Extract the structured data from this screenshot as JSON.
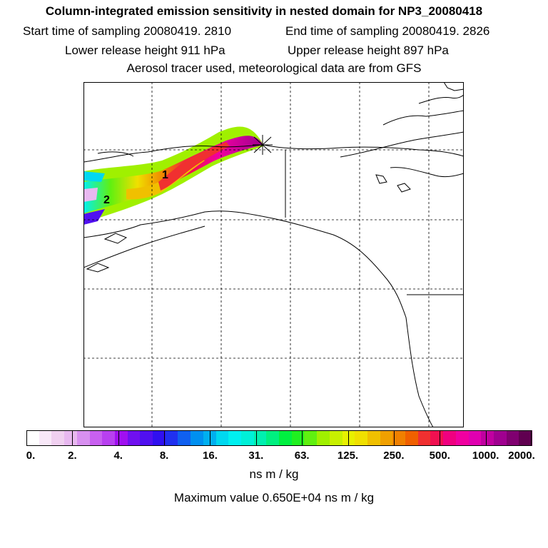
{
  "header": {
    "title": "Column-integrated emission sensitivity in nested domain for NP3_20080418",
    "start_time": "Start time of sampling 20080419.  2810",
    "end_time": "End time of sampling 20080419.  2826",
    "lower_height": "Lower release height  911 hPa",
    "upper_height": "Upper release height  897 hPa",
    "tracer_note": "Aerosol tracer used, meteorological data are from GFS"
  },
  "map": {
    "markers": [
      {
        "label": "1"
      },
      {
        "label": "2"
      }
    ],
    "release_symbol": "star-icon"
  },
  "colorbar": {
    "tick_labels": [
      "0.",
      "2.",
      "4.",
      "8.",
      "16.",
      "31.",
      "63.",
      "125.",
      "250.",
      "500.",
      "1000.",
      "2000."
    ],
    "colors": [
      "#ffffff",
      "#f8e8f8",
      "#f0d0f0",
      "#e8b8f0",
      "#d890f0",
      "#c860f0",
      "#b840f0",
      "#a010f0",
      "#7010f0",
      "#5010f0",
      "#3010f0",
      "#2030f0",
      "#1060f0",
      "#0090f0",
      "#00b0f0",
      "#00d8f0",
      "#00f0f0",
      "#00f0d8",
      "#00f0b0",
      "#00f080",
      "#00f040",
      "#20f020",
      "#60f010",
      "#a0f000",
      "#c8f000",
      "#e8f000",
      "#f0e000",
      "#f0c000",
      "#f0a000",
      "#f08000",
      "#f06000",
      "#f03030",
      "#f01050",
      "#f00080",
      "#f000a0",
      "#e000b0",
      "#c000a0",
      "#a00090",
      "#800070",
      "#600050"
    ],
    "units": "ns m / kg",
    "max_value": "Maximum value  0.650E+04 ns m / kg"
  }
}
